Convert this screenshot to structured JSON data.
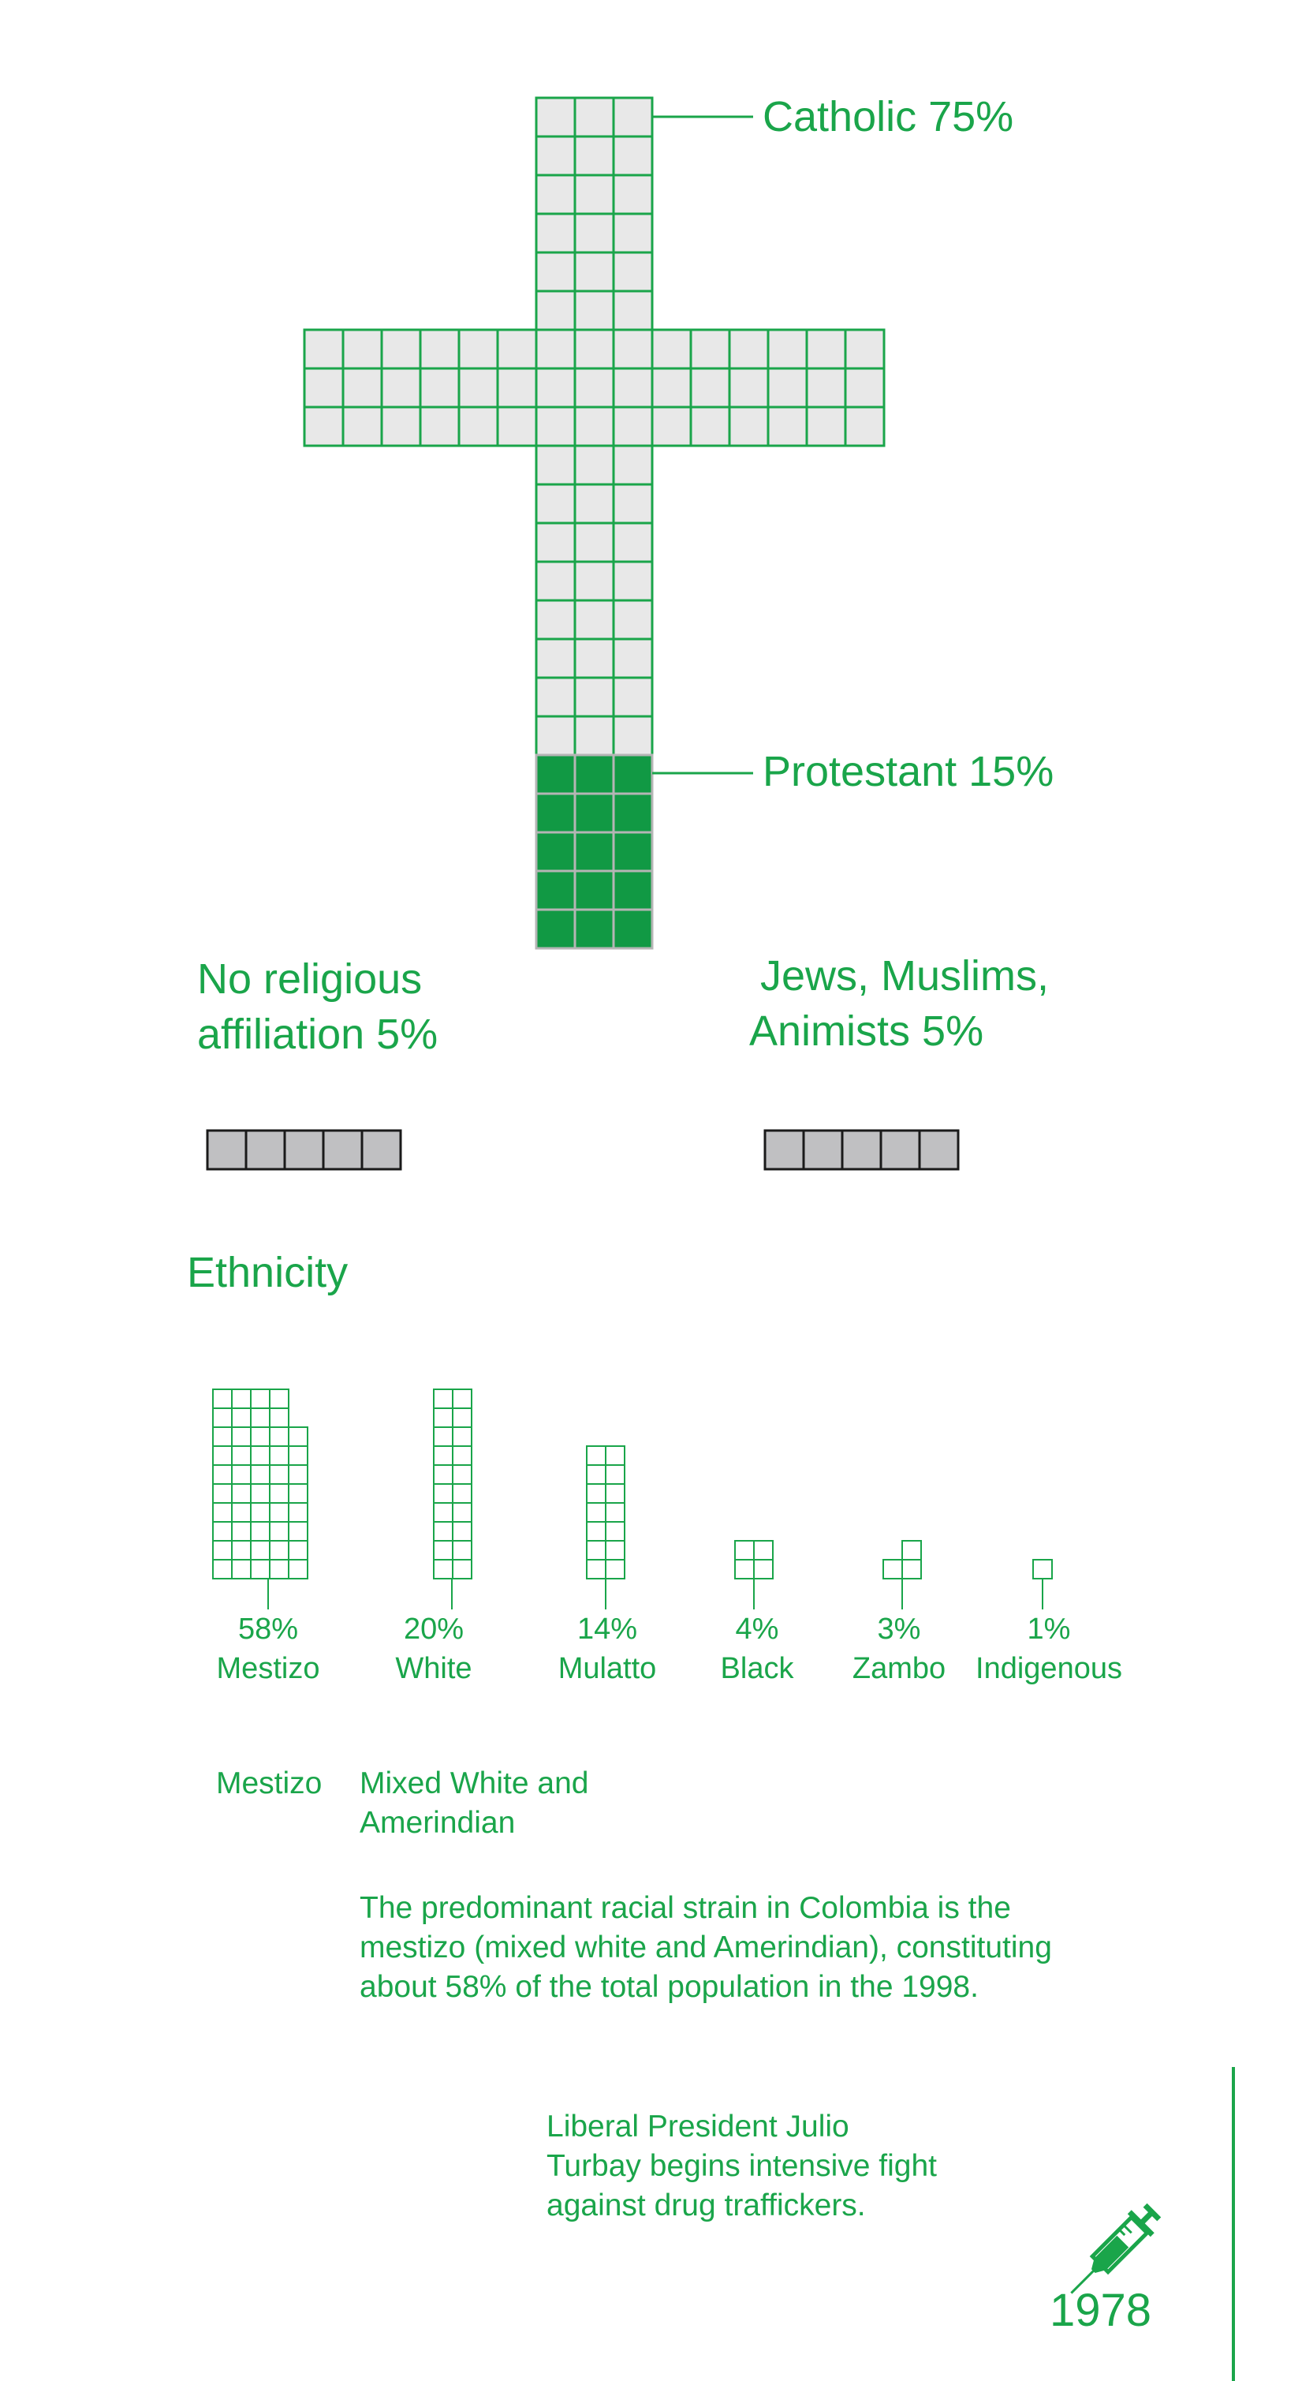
{
  "colors": {
    "accent": "#1aa54a",
    "cell_light": "#e8e8e8",
    "cell_dark": "#119944",
    "cell_gray": "#c0c0c2",
    "cell_gray_border": "#1a1a1a",
    "protestant_border": "#b5b5b5"
  },
  "chart_data": [
    {
      "type": "waffle",
      "categories": [
        "Catholic",
        "Protestant",
        "No religious affiliation",
        "Jews, Muslims, Animists"
      ],
      "values": [
        75,
        15,
        5,
        5
      ],
      "unit": "%",
      "labels": {
        "catholic": "Catholic 75%",
        "protestant": "Protestant 15%",
        "none_line1": "No religious",
        "none_line2": "affiliation 5%",
        "other_line1": "Jews, Muslims,",
        "other_line2": "Animists 5%"
      }
    },
    {
      "type": "waffle",
      "title": "Ethnicity",
      "categories": [
        "Mestizo",
        "White",
        "Mulatto",
        "Black",
        "Zambo",
        "Indigenous"
      ],
      "values": [
        58,
        20,
        14,
        4,
        3,
        1
      ],
      "value_labels": [
        "58%",
        "20%",
        "14%",
        "4%",
        "3%",
        "1%"
      ]
    }
  ],
  "definition": {
    "term": "Mestizo",
    "meaning_line1": "Mixed White and",
    "meaning_line2": "Amerindian",
    "paragraph_lines": [
      "The predominant racial strain in Colombia is the",
      "mestizo (mixed white and Amerindian), constituting",
      "about 58% of the total population in the 1998."
    ]
  },
  "timeline": {
    "event_lines": [
      "Liberal President Julio",
      "Turbay begins intensive fight",
      "against drug traffickers."
    ],
    "year": "1978",
    "icon": "syringe-icon"
  }
}
